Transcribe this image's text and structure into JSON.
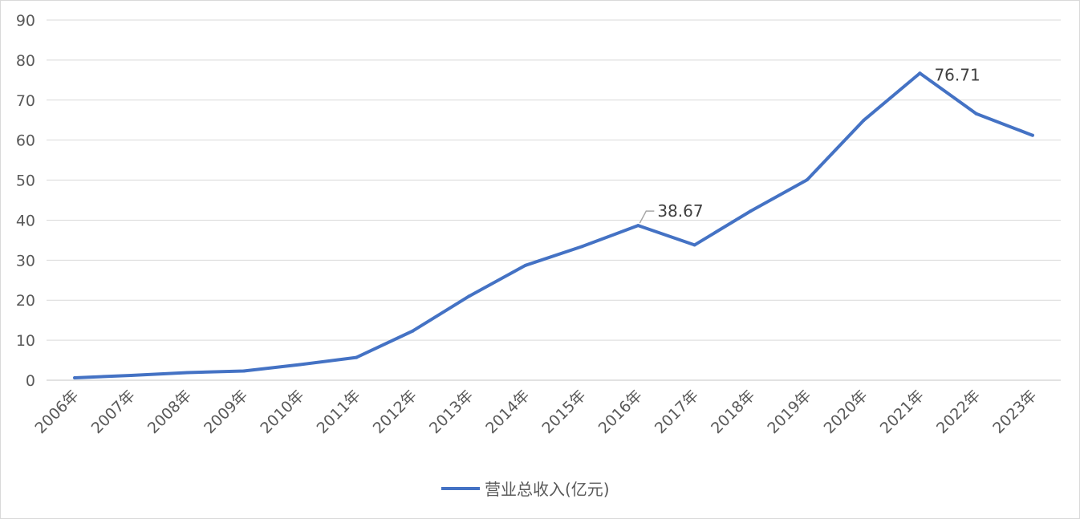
{
  "chart_data": {
    "type": "line",
    "title": "",
    "xlabel": "",
    "ylabel": "",
    "ylim": [
      0,
      90
    ],
    "yticks": [
      0,
      10,
      20,
      30,
      40,
      50,
      60,
      70,
      80,
      90
    ],
    "grid": "horizontal",
    "legend_position": "bottom",
    "categories": [
      "2006年",
      "2007年",
      "2008年",
      "2009年",
      "2010年",
      "2011年",
      "2012年",
      "2013年",
      "2014年",
      "2015年",
      "2016年",
      "2017年",
      "2018年",
      "2019年",
      "2020年",
      "2021年",
      "2022年",
      "2023年"
    ],
    "series": [
      {
        "name": "营业总收入(亿元)",
        "color": "#4472c4",
        "values": [
          0.6,
          1.2,
          1.9,
          2.3,
          3.9,
          5.7,
          12.3,
          21.0,
          28.7,
          33.4,
          38.67,
          33.8,
          42.3,
          50.1,
          64.9,
          76.71,
          66.6,
          61.2
        ]
      }
    ],
    "data_labels": [
      {
        "category": "2016年",
        "text": "38.67"
      },
      {
        "category": "2021年",
        "text": "76.71"
      }
    ],
    "colors": {
      "axis": "#d9d9d9",
      "grid": "#d9d9d9",
      "text": "#595959"
    }
  }
}
